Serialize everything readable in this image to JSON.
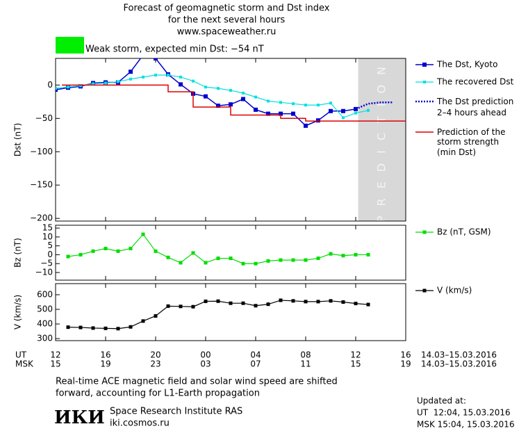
{
  "header": {
    "title_lines": [
      "Forecast of geomagnetic storm and Dst index",
      "for the next several hours",
      "www.spaceweather.ru"
    ],
    "storm_label": "Weak storm, expected min Dst: −54 nT",
    "storm_color": "#00ee00"
  },
  "chart_data": [
    {
      "type": "line",
      "ylabel": "Dst (nT)",
      "xlim": [
        0,
        28
      ],
      "ylim": [
        -204,
        40
      ],
      "xticks": [
        0,
        4,
        8,
        12,
        16,
        20,
        24,
        28
      ],
      "yticks": [
        0,
        {
          "value": -50,
          "label": "−50"
        },
        {
          "value": -100,
          "label": "−100"
        },
        {
          "value": -150,
          "label": "−150"
        },
        {
          "value": -200,
          "label": "−200"
        }
      ],
      "prediction_region": [
        24.2,
        28
      ],
      "region_label": "PREDICTION",
      "series": [
        {
          "name": "The Dst, Kyoto",
          "color": "#0000cc",
          "marker": 6,
          "width": 1.5,
          "x": [
            0,
            1,
            2,
            3,
            4,
            5,
            6,
            7,
            8,
            9,
            10,
            11,
            12,
            13,
            14,
            15,
            16,
            17,
            18,
            19,
            20,
            21,
            22,
            23,
            24
          ],
          "values": [
            -7,
            -4,
            -2,
            3,
            4,
            4,
            20,
            45,
            40,
            16,
            1,
            -13,
            -17,
            -31,
            -29,
            -21,
            -37,
            -43,
            -43,
            -43,
            -61,
            -53,
            -39,
            -39,
            -36
          ]
        },
        {
          "name": "The recovered Dst",
          "color": "#00e0e0",
          "marker": 4,
          "width": 1.2,
          "x": [
            0,
            1,
            2,
            3,
            4,
            5,
            6,
            7,
            8,
            9,
            10,
            11,
            12,
            13,
            14,
            15,
            16,
            17,
            18,
            19,
            20,
            21,
            22,
            23,
            24,
            25
          ],
          "values": [
            -5,
            -3,
            -1,
            2,
            3,
            5,
            9,
            12,
            15,
            15,
            12,
            6,
            -3,
            -5,
            -8,
            -12,
            -18,
            -24,
            -26,
            -28,
            -30,
            -30,
            -27,
            -49,
            -42,
            -38
          ]
        },
        {
          "name": "The Dst prediction\n2–4 hours ahead",
          "color": "#0000cc",
          "marker": 0,
          "width": 2.5,
          "dash": "2 2",
          "x": [
            24,
            25,
            26,
            27
          ],
          "values": [
            -36,
            -28,
            -26,
            -26
          ]
        },
        {
          "name": "Prediction of the\nstorm strength\n(min Dst)",
          "color": "#dd0000",
          "marker": 0,
          "width": 1.5,
          "x": [
            0.5,
            9,
            9,
            11,
            11,
            14,
            14,
            18,
            18,
            20,
            20,
            28
          ],
          "values": [
            0,
            0,
            -10,
            -10,
            -33,
            -33,
            -45,
            -45,
            -50,
            -50,
            -54,
            -54
          ]
        }
      ]
    },
    {
      "type": "line",
      "ylabel": "Bz (nT)",
      "xlim": [
        0,
        28
      ],
      "ylim": [
        -14.3,
        16.6
      ],
      "xticks": [
        0,
        4,
        8,
        12,
        16,
        20,
        24,
        28
      ],
      "yticks": [
        15,
        10,
        5,
        0,
        {
          "value": -5,
          "label": "−5"
        },
        {
          "value": -10,
          "label": "−10"
        }
      ],
      "series": [
        {
          "name": "Bz (nT, GSM)",
          "color": "#00dd00",
          "marker": 5,
          "width": 1.2,
          "x": [
            1,
            2,
            3,
            4,
            5,
            6,
            7,
            8,
            9,
            10,
            11,
            12,
            13,
            14,
            15,
            16,
            17,
            18,
            19,
            20,
            21,
            22,
            23,
            24,
            25
          ],
          "values": [
            -1,
            0,
            2,
            3.5,
            2,
            3.5,
            11.5,
            2,
            -1.5,
            -4.5,
            1,
            -4.5,
            -2,
            -2,
            -5,
            -5,
            -3.5,
            -3,
            -3,
            -3,
            -2,
            0.5,
            -0.5,
            0,
            0
          ]
        }
      ]
    },
    {
      "type": "line",
      "ylabel": "V (km/s)",
      "xlim": [
        0,
        28
      ],
      "ylim": [
        286,
        676
      ],
      "xticks": [
        {
          "value": 0,
          "label": "12"
        },
        {
          "value": 4,
          "label": "16"
        },
        {
          "value": 8,
          "label": "20"
        },
        {
          "value": 12,
          "label": "00"
        },
        {
          "value": 16,
          "label": "04"
        },
        {
          "value": 20,
          "label": "08"
        },
        {
          "value": 24,
          "label": "12"
        },
        {
          "value": 28,
          "label": "16"
        }
      ],
      "x2_labels": [
        "15",
        "19",
        "23",
        "03",
        "07",
        "11",
        "15",
        "19"
      ],
      "yticks": [
        600,
        500,
        400,
        300
      ],
      "series": [
        {
          "name": "V (km/s)",
          "color": "#000000",
          "marker": 5,
          "width": 1.2,
          "x": [
            1,
            2,
            3,
            4,
            5,
            6,
            7,
            8,
            9,
            10,
            11,
            12,
            13,
            14,
            15,
            16,
            17,
            18,
            19,
            20,
            21,
            22,
            23,
            24,
            25
          ],
          "values": [
            378,
            376,
            372,
            370,
            368,
            380,
            420,
            455,
            522,
            520,
            518,
            555,
            556,
            542,
            542,
            525,
            535,
            562,
            558,
            553,
            553,
            558,
            550,
            540,
            533
          ]
        }
      ]
    }
  ],
  "axis_rows": {
    "ut": "UT",
    "msk": "MSK",
    "ut_range": "14.03–15.03.2016",
    "msk_range": "14.03–15.03.2016"
  },
  "footer": {
    "note_lines": [
      "Real-time ACE magnetic field and solar wind speed are shifted",
      "forward, accounting for L1-Earth propagation"
    ],
    "logo": "ИКИ",
    "institute": "Space Research Institute RAS",
    "site": "iki.cosmos.ru",
    "updated_lines": [
      "Updated at:",
      "UT  12:04, 15.03.2016",
      "MSK 15:04, 15.03.2016"
    ]
  }
}
